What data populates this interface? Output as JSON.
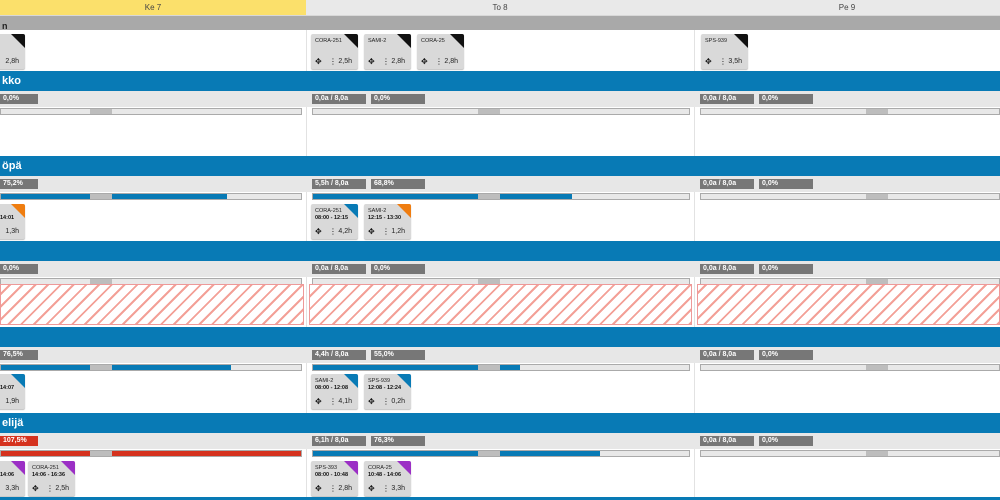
{
  "days": [
    {
      "label": "Ke 7",
      "active": true
    },
    {
      "label": "To 8",
      "active": false
    },
    {
      "label": "Pe 9",
      "active": false
    }
  ],
  "top_row": {
    "header_fragment": "n",
    "cards": [
      {
        "name": "",
        "time": "",
        "hours": "2,8h"
      },
      {
        "name": "CORA-251",
        "time": "",
        "hours": "2,5h"
      },
      {
        "name": "SAMI-2",
        "time": "",
        "hours": "2,8h"
      },
      {
        "name": "CORA-25",
        "time": "",
        "hours": "2,8h"
      },
      {
        "name": "SPS-939",
        "time": "",
        "hours": "3,5h"
      }
    ]
  },
  "sections": [
    {
      "title": "kko",
      "pills": [
        "0,0%",
        "0,0a / 8,0a",
        "0,0%",
        "0,0a / 8,0a",
        "0,0%"
      ],
      "cards": []
    },
    {
      "title": "öpä",
      "pills": [
        "75,2%",
        "5,5h / 8,0a",
        "68,8%",
        "0,0a / 8,0a",
        "0,0%"
      ],
      "cards": [
        {
          "name": "",
          "time": "14:01",
          "hours": "1,3h"
        },
        {
          "name": "CORA-251",
          "time": "08:00 - 12:15",
          "hours": "4,2h"
        },
        {
          "name": "SAMI-2",
          "time": "12:15 - 13:30",
          "hours": "1,2h"
        }
      ]
    },
    {
      "title": "",
      "pills": [
        "0,0%",
        "0,0a / 8,0a",
        "0,0%",
        "0,0a / 8,0a",
        "0,0%"
      ],
      "cards": []
    },
    {
      "title": "",
      "pills": [
        "76,5%",
        "4,4h / 8,0a",
        "55,0%",
        "0,0a / 8,0a",
        "0,0%"
      ],
      "cards": [
        {
          "name": "",
          "time": "14:07",
          "hours": "1,9h"
        },
        {
          "name": "SAMI-2",
          "time": "08:00 - 12:08",
          "hours": "4,1h"
        },
        {
          "name": "SPS-939",
          "time": "12:08 - 12:24",
          "hours": "0,2h"
        }
      ]
    },
    {
      "title": "elijä",
      "pills": [
        "107,5%",
        "6,1h / 8,0a",
        "76,3%",
        "0,0a / 8,0a",
        "0,0%"
      ],
      "cards": [
        {
          "name": "",
          "time": "14:06",
          "hours": "3,3h"
        },
        {
          "name": "CORA-251",
          "time": "14:06 - 16:36",
          "hours": "2,5h"
        },
        {
          "name": "SPS-393",
          "time": "08:00 - 10:48",
          "hours": "2,8h"
        },
        {
          "name": "CORA-25",
          "time": "10:48 - 14:06",
          "hours": "3,3h"
        }
      ]
    }
  ],
  "progress": {
    "s2_ke": 0.752,
    "s2_to": 0.688,
    "s4_ke": 0.765,
    "s4_to": 0.55,
    "s5_ke": 1.0,
    "s5_to": 0.763
  },
  "colors": {
    "header_active": "#fbe06b",
    "blue": "#087ab5",
    "red": "#d5321e",
    "tri_black": "#111111",
    "tri_blue": "#087ab5",
    "tri_orange": "#ef7d10",
    "tri_purple": "#9b2fc5"
  }
}
